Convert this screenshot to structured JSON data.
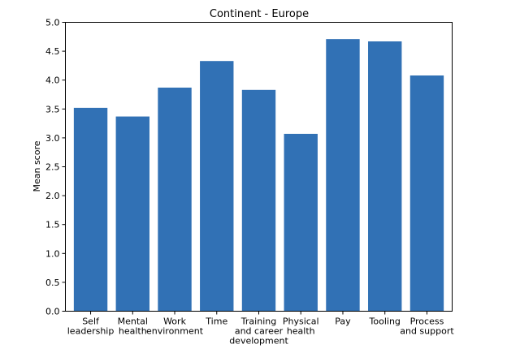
{
  "chart_data": {
    "type": "bar",
    "title": "Continent - Europe",
    "xlabel": "",
    "ylabel": "Mean score",
    "ylim": [
      0,
      5
    ],
    "yticks": [
      "0.0",
      "0.5",
      "1.0",
      "1.5",
      "2.0",
      "2.5",
      "3.0",
      "3.5",
      "4.0",
      "4.5",
      "5.0"
    ],
    "categories": [
      [
        "Self",
        "leadership"
      ],
      [
        "Mental",
        "health"
      ],
      [
        "Work",
        "environment"
      ],
      [
        "Time"
      ],
      [
        "Training",
        "and career",
        "development"
      ],
      [
        "Physical",
        "health"
      ],
      [
        "Pay"
      ],
      [
        "Tooling"
      ],
      [
        "Process",
        "and support"
      ]
    ],
    "values": [
      3.52,
      3.37,
      3.87,
      4.33,
      3.83,
      3.07,
      4.71,
      4.67,
      4.08
    ],
    "bar_color": "#3171b5",
    "grid": false
  }
}
